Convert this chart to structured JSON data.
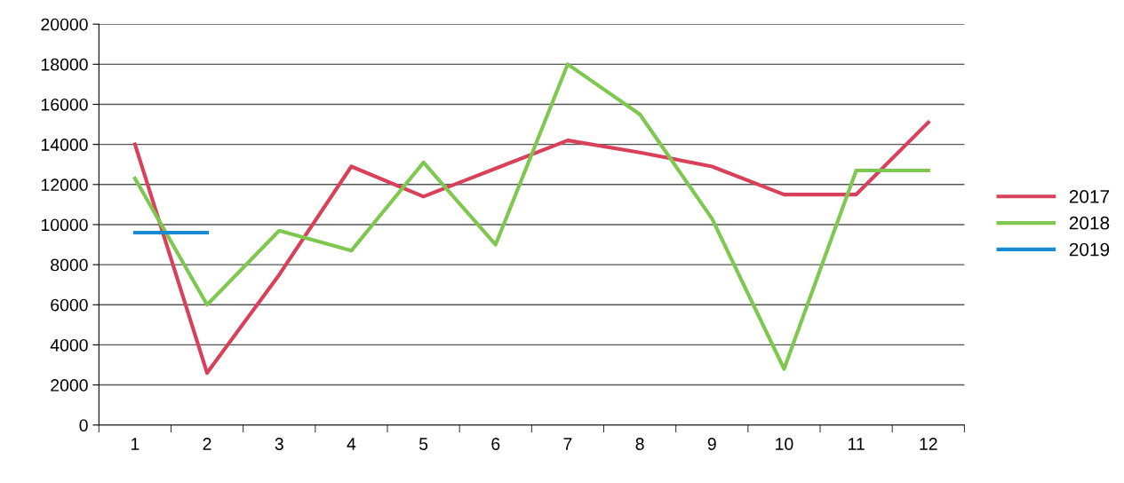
{
  "chart_data": {
    "type": "line",
    "categories": [
      "1",
      "2",
      "3",
      "4",
      "5",
      "6",
      "7",
      "8",
      "9",
      "10",
      "11",
      "12"
    ],
    "series": [
      {
        "name": "2017",
        "color": "#d9405a",
        "values": [
          14000,
          2600,
          7500,
          12900,
          11400,
          12800,
          14200,
          13600,
          12900,
          11500,
          11500,
          15100
        ]
      },
      {
        "name": "2018",
        "color": "#7ec850",
        "values": [
          12300,
          6000,
          9700,
          8700,
          13100,
          9000,
          18000,
          15500,
          10300,
          2800,
          12700,
          12700
        ]
      },
      {
        "name": "2019",
        "color": "#1a8ad4",
        "values": [
          9600,
          9600,
          null,
          null,
          null,
          null,
          null,
          null,
          null,
          null,
          null,
          null
        ]
      }
    ],
    "ylim": [
      0,
      20000
    ],
    "yticks": [
      0,
      2000,
      4000,
      6000,
      8000,
      10000,
      12000,
      14000,
      16000,
      18000,
      20000
    ],
    "grid": "y",
    "legend": "right",
    "marker": "none",
    "line_style": "solid"
  }
}
